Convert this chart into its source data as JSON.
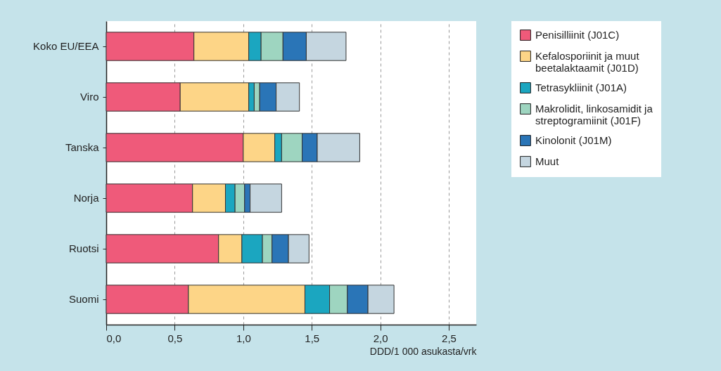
{
  "chart_data": {
    "type": "bar",
    "orientation": "horizontal",
    "stacked": true,
    "xlabel": "DDD/1 000 asukasta/vrk",
    "categories": [
      "Koko EU/EEA",
      "Viro",
      "Tanska",
      "Norja",
      "Ruotsi",
      "Suomi"
    ],
    "series": [
      {
        "name": "Penisilliinit (J01C)",
        "color": "#ef5a7a",
        "values": [
          0.64,
          0.54,
          1.0,
          0.63,
          0.82,
          0.6
        ]
      },
      {
        "name": "Kefalosporiinit ja muut beetalaktaamit (J01D)",
        "color": "#fdd587",
        "values": [
          0.4,
          0.5,
          0.23,
          0.24,
          0.17,
          0.85
        ]
      },
      {
        "name": "Tetrasykliinit (J01A)",
        "color": "#1ba6c0",
        "values": [
          0.09,
          0.04,
          0.05,
          0.07,
          0.15,
          0.18
        ]
      },
      {
        "name": "Makrolidit, linkosamidit ja streptogramiinit (J01F)",
        "color": "#9ed5c0",
        "values": [
          0.16,
          0.04,
          0.15,
          0.07,
          0.07,
          0.13
        ]
      },
      {
        "name": "Kinolonit (J01M)",
        "color": "#2a75b7",
        "values": [
          0.17,
          0.12,
          0.11,
          0.04,
          0.12,
          0.15
        ]
      },
      {
        "name": "Muut",
        "color": "#c5d6e0",
        "values": [
          0.29,
          0.17,
          0.31,
          0.23,
          0.15,
          0.19
        ]
      }
    ],
    "xlim": [
      0,
      2.7
    ],
    "xticks": [
      {
        "value": 0,
        "label": "0,0"
      },
      {
        "value": 0.5,
        "label": "0,5"
      },
      {
        "value": 1,
        "label": "1,0"
      },
      {
        "value": 1.5,
        "label": "1,5"
      },
      {
        "value": 2,
        "label": "2,0"
      },
      {
        "value": 2.5,
        "label": "2,5"
      }
    ],
    "grid": "x",
    "legend": "right"
  }
}
